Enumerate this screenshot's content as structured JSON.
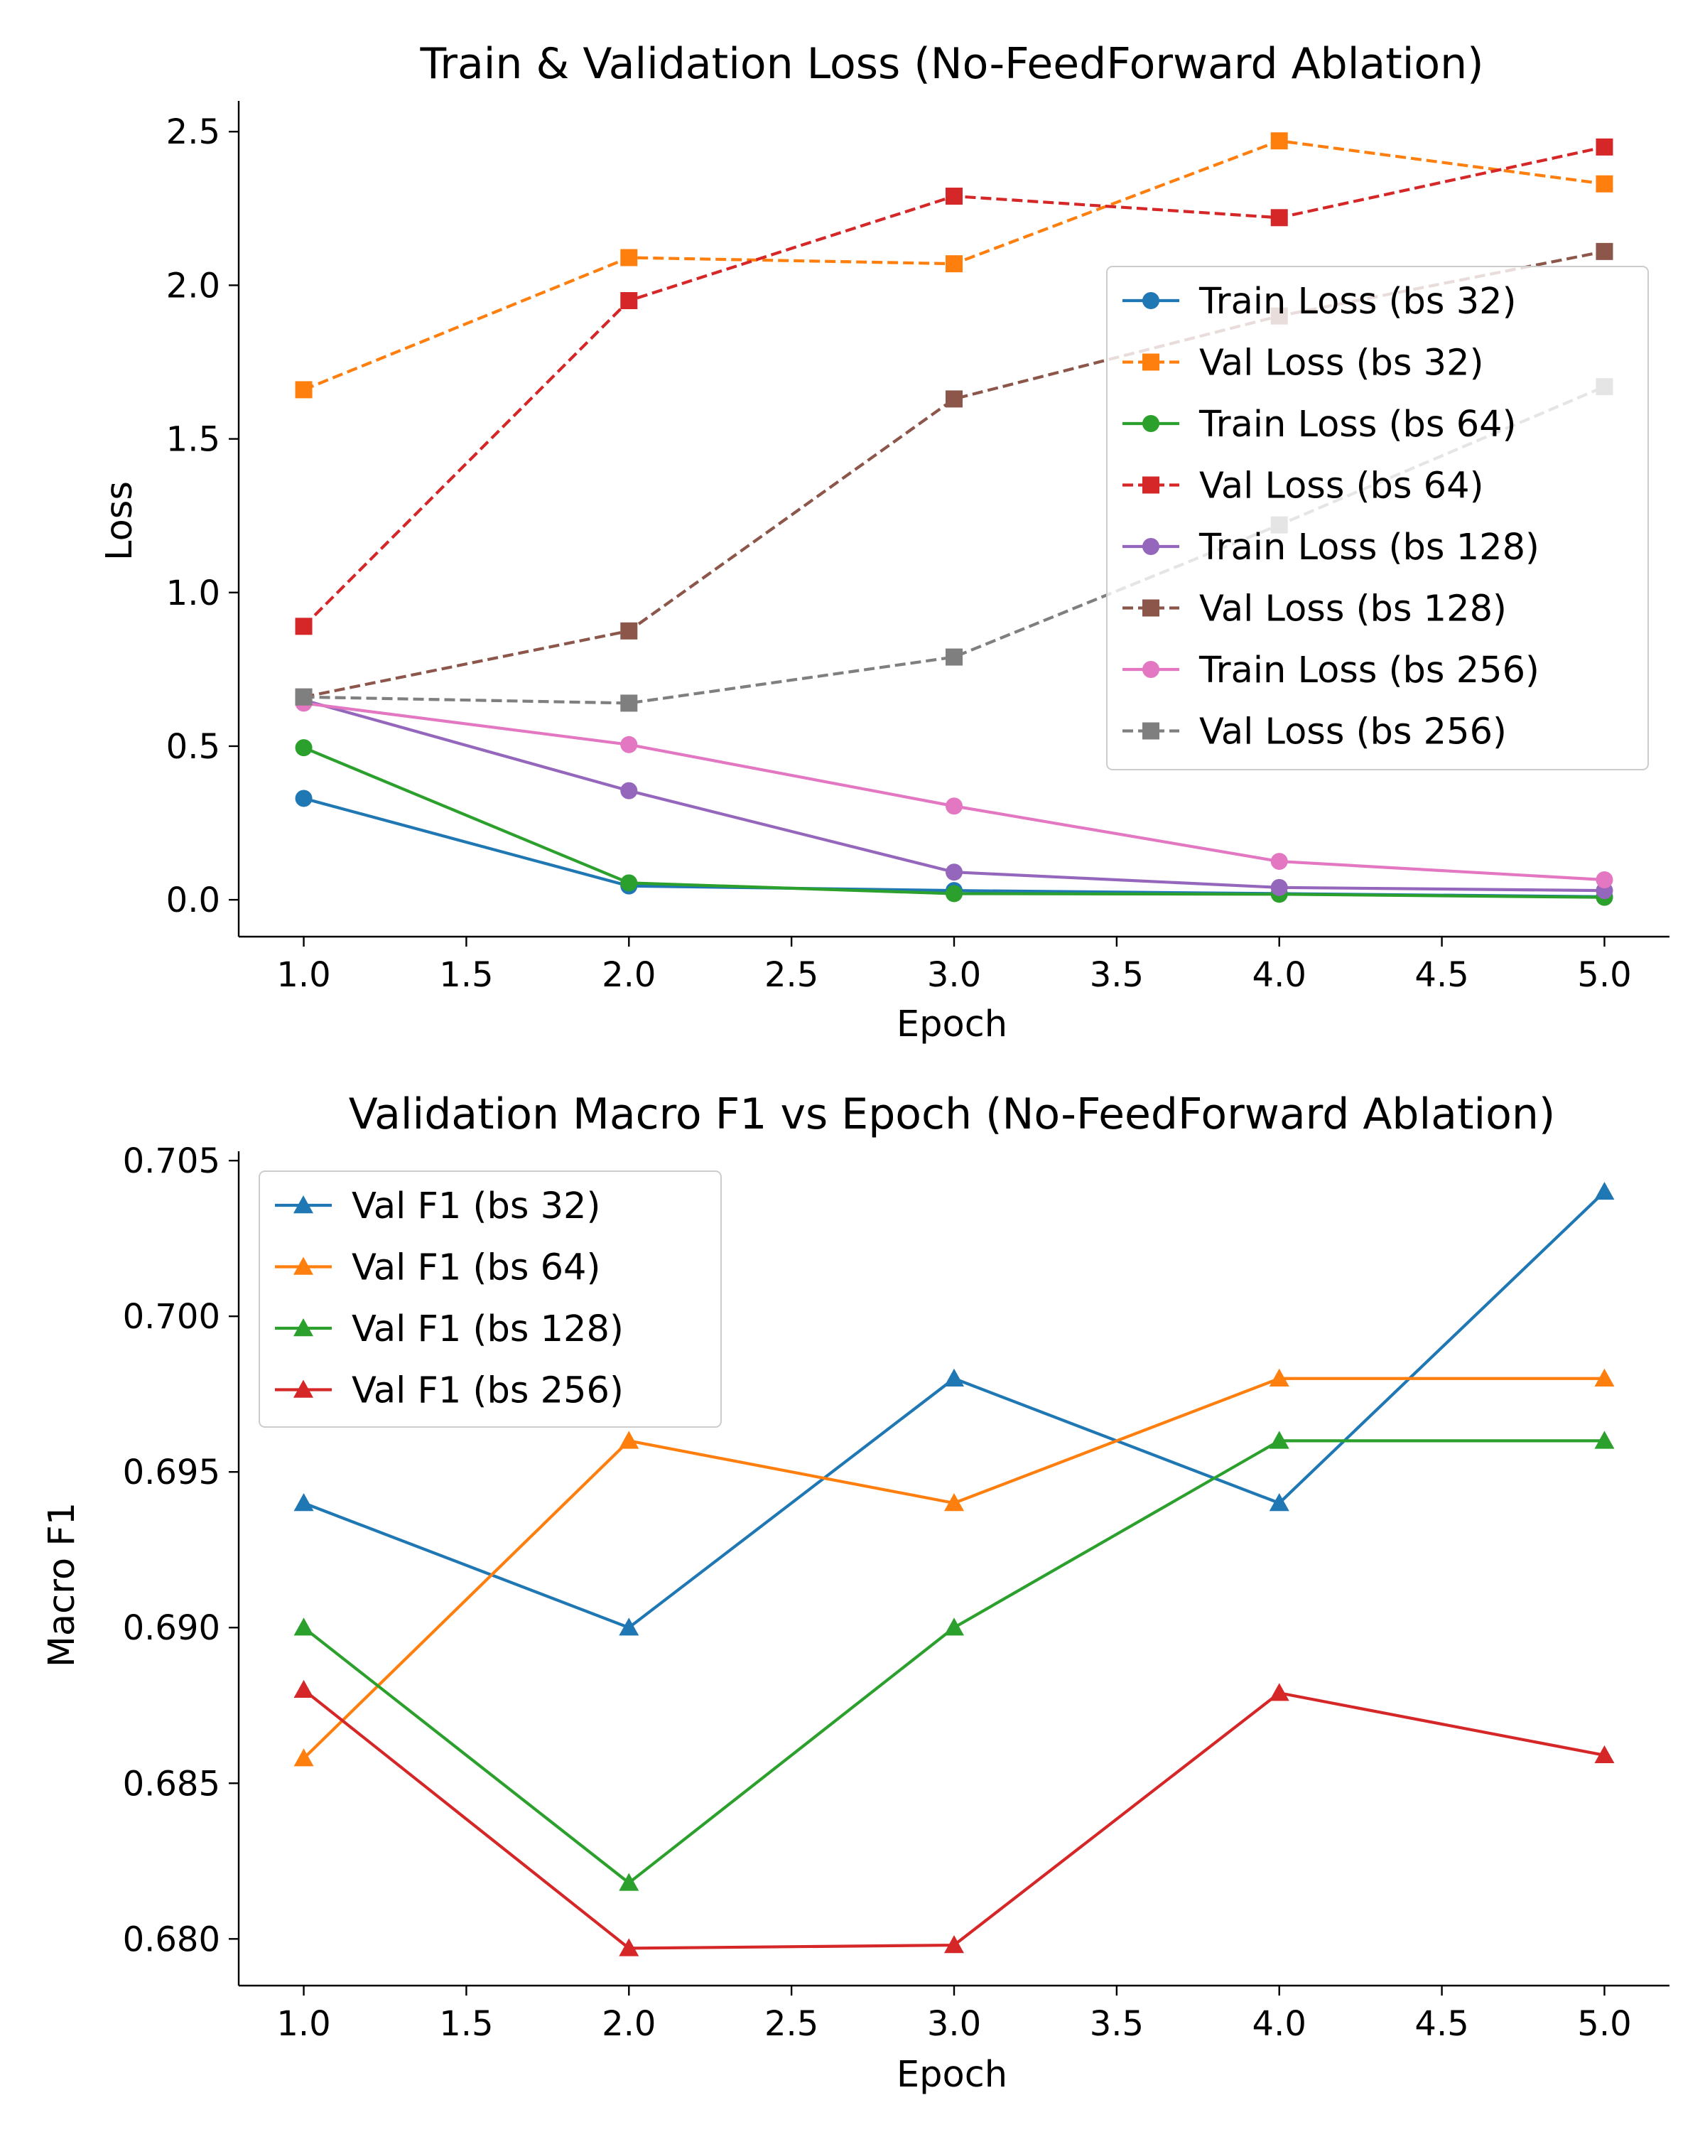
{
  "chart_data": [
    {
      "type": "line",
      "title": "Train & Validation Loss (No-FeedForward Ablation)",
      "xlabel": "Epoch",
      "ylabel": "Loss",
      "xlim": [
        0.8,
        5.2
      ],
      "ylim": [
        -0.12,
        2.6
      ],
      "xticks": [
        "1.0",
        "1.5",
        "2.0",
        "2.5",
        "3.0",
        "3.5",
        "4.0",
        "4.5",
        "5.0"
      ],
      "yticks": [
        "0.0",
        "0.5",
        "1.0",
        "1.5",
        "2.0",
        "2.5"
      ],
      "grid": false,
      "legend_position": "center-right",
      "x": [
        1,
        2,
        3,
        4,
        5
      ],
      "series": [
        {
          "name": "Train Loss (bs 32)",
          "values": [
            0.33,
            0.045,
            0.03,
            0.02,
            0.01
          ],
          "color": "#1f77b4",
          "dash": "solid",
          "marker": "circle"
        },
        {
          "name": "Val Loss (bs 32)",
          "values": [
            1.66,
            2.09,
            2.07,
            2.47,
            2.33
          ],
          "color": "#ff7f0e",
          "dash": "dashed",
          "marker": "square"
        },
        {
          "name": "Train Loss (bs 64)",
          "values": [
            0.495,
            0.055,
            0.02,
            0.018,
            0.008
          ],
          "color": "#2ca02c",
          "dash": "solid",
          "marker": "circle"
        },
        {
          "name": "Val Loss (bs 64)",
          "values": [
            0.89,
            1.95,
            2.29,
            2.22,
            2.45
          ],
          "color": "#d62728",
          "dash": "dashed",
          "marker": "square"
        },
        {
          "name": "Train Loss (bs 128)",
          "values": [
            0.65,
            0.355,
            0.09,
            0.04,
            0.03
          ],
          "color": "#9467bd",
          "dash": "solid",
          "marker": "circle"
        },
        {
          "name": "Val Loss (bs 128)",
          "values": [
            0.66,
            0.875,
            1.63,
            1.9,
            2.11
          ],
          "color": "#8c564b",
          "dash": "dashed",
          "marker": "square"
        },
        {
          "name": "Train Loss (bs 256)",
          "values": [
            0.64,
            0.505,
            0.305,
            0.125,
            0.065
          ],
          "color": "#e377c2",
          "dash": "solid",
          "marker": "circle"
        },
        {
          "name": "Val Loss (bs 256)",
          "values": [
            0.66,
            0.64,
            0.79,
            1.22,
            1.67
          ],
          "color": "#7f7f7f",
          "dash": "dashed",
          "marker": "square"
        }
      ]
    },
    {
      "type": "line",
      "title": "Validation Macro F1 vs Epoch (No-FeedForward Ablation)",
      "xlabel": "Epoch",
      "ylabel": "Macro F1",
      "xlim": [
        0.8,
        5.2
      ],
      "ylim": [
        0.6785,
        0.7053
      ],
      "xticks": [
        "1.0",
        "1.5",
        "2.0",
        "2.5",
        "3.0",
        "3.5",
        "4.0",
        "4.5",
        "5.0"
      ],
      "yticks": [
        "0.680",
        "0.685",
        "0.690",
        "0.695",
        "0.700",
        "0.705"
      ],
      "grid": false,
      "legend_position": "upper-left",
      "x": [
        1,
        2,
        3,
        4,
        5
      ],
      "series": [
        {
          "name": "Val F1 (bs 32)",
          "values": [
            0.694,
            0.69,
            0.698,
            0.694,
            0.704
          ],
          "color": "#1f77b4",
          "dash": "solid",
          "marker": "triangle"
        },
        {
          "name": "Val F1 (bs 64)",
          "values": [
            0.6858,
            0.696,
            0.694,
            0.698,
            0.698
          ],
          "color": "#ff7f0e",
          "dash": "solid",
          "marker": "triangle"
        },
        {
          "name": "Val F1 (bs 128)",
          "values": [
            0.69,
            0.6818,
            0.69,
            0.696,
            0.696
          ],
          "color": "#2ca02c",
          "dash": "solid",
          "marker": "triangle"
        },
        {
          "name": "Val F1 (bs 256)",
          "values": [
            0.688,
            0.6797,
            0.6798,
            0.6879,
            0.6859
          ],
          "color": "#d62728",
          "dash": "solid",
          "marker": "triangle"
        }
      ]
    }
  ]
}
